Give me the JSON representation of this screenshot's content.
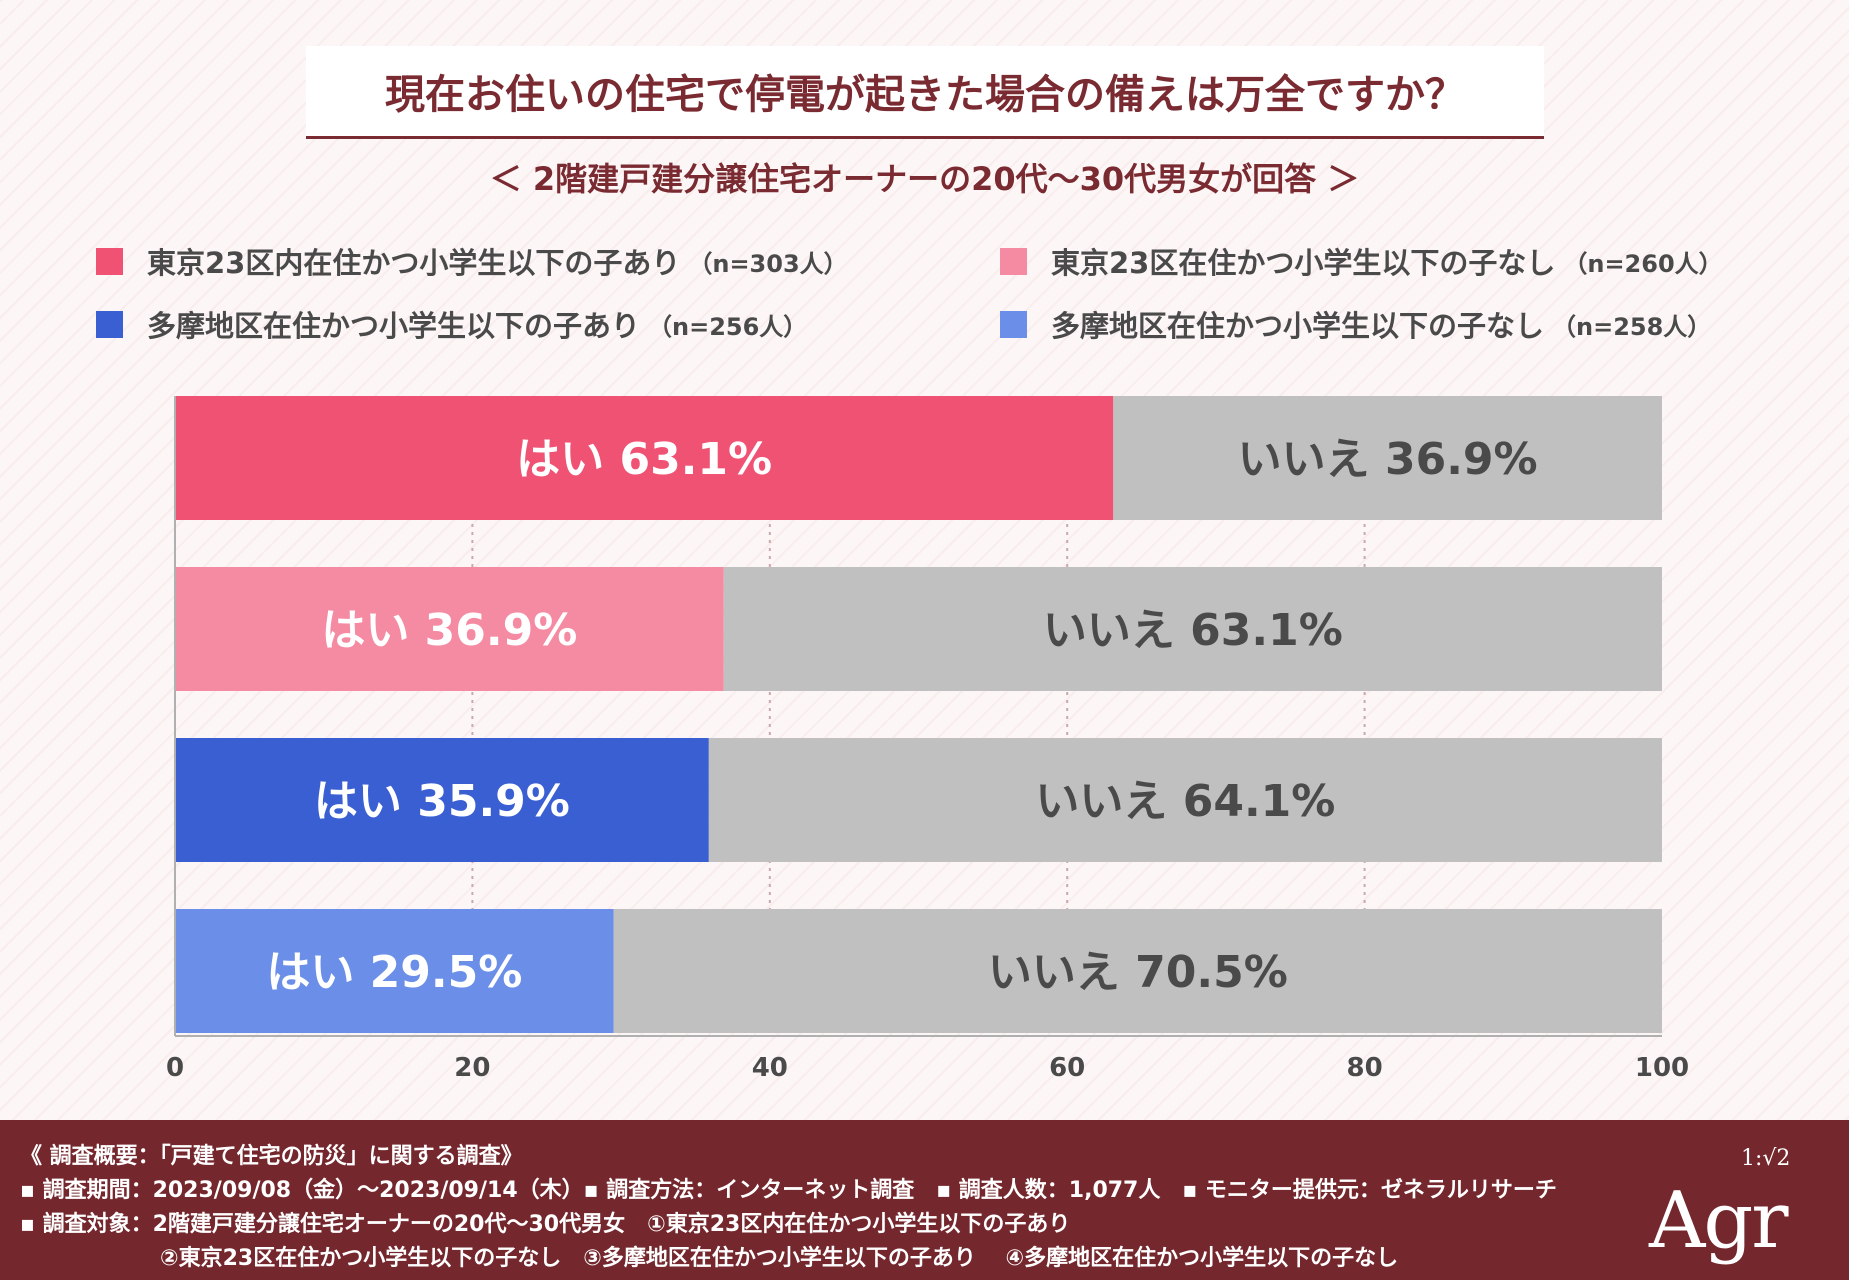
{
  "title": "現在お住いの住宅で停電が起きた場合の備えは万全ですか？",
  "subtitle": "＜ 2階建戸建分譲住宅オーナーの20代～30代男女が回答 ＞",
  "legend": [
    {
      "label": "東京23区内在住かつ小学生以下の子あり",
      "n": "（n=303人）",
      "color": "#f05274"
    },
    {
      "label": "東京23区在住かつ小学生以下の子なし",
      "n": "（n=260人）",
      "color": "#f58ba3"
    },
    {
      "label": "多摩地区在住かつ小学生以下の子あり",
      "n": "（n=256人）",
      "color": "#3a5fd3"
    },
    {
      "label": "多摩地区在住かつ小学生以下の子なし",
      "n": "（n=258人）",
      "color": "#6b8fe8"
    }
  ],
  "chart_data": {
    "type": "bar",
    "orientation": "horizontal-stacked-100",
    "categories": [
      "東京23区内在住かつ小学生以下の子あり",
      "東京23区在住かつ小学生以下の子なし",
      "多摩地区在住かつ小学生以下の子あり",
      "多摩地区在住かつ小学生以下の子なし"
    ],
    "series": [
      {
        "name": "はい",
        "values": [
          63.1,
          36.9,
          35.9,
          29.5
        ],
        "colors": [
          "#f05274",
          "#f58ba3",
          "#3a5fd3",
          "#6b8fe8"
        ]
      },
      {
        "name": "いいえ",
        "values": [
          36.9,
          63.1,
          64.1,
          70.5
        ],
        "color": "#c0c0c0"
      }
    ],
    "xlim": [
      0,
      100
    ],
    "xticks": [
      "0",
      "20",
      "40",
      "60",
      "80",
      "100"
    ],
    "grid": true
  },
  "footer": {
    "line1": "《 調査概要：「戸建て住宅の防災」に関する調査》",
    "line2": "▪ 調査期間：2023/09/08（金）～2023/09/14（木）▪ 調査方法：インターネット調査　▪ 調査人数：1,077人　▪ モニター提供元：ゼネラルリサーチ",
    "line3": "▪ 調査対象：2階建戸建分譲住宅オーナーの20代～30代男女　①東京23区内在住かつ小学生以下の子あり",
    "line4": "②東京23区在住かつ小学生以下の子なし　③多摩地区在住かつ小学生以下の子あり　 ④多摩地区在住かつ小学生以下の子なし"
  },
  "logo": {
    "text": "Agr",
    "ratio": "1:√2"
  }
}
